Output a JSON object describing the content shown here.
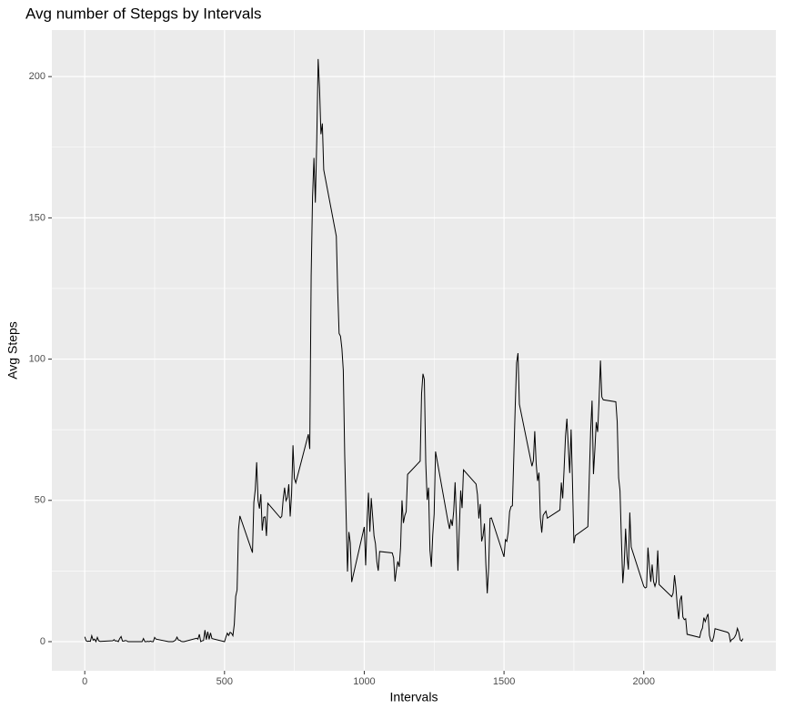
{
  "chart_data": {
    "type": "line",
    "title": "Avg number of Stepgs by Intervals",
    "x_label": "Intervals",
    "y_label": "Avg Steps",
    "color": "#000000",
    "grid": true,
    "xlim": [
      -117.75,
      2472.75
    ],
    "ylim": [
      -10.31,
      216.48
    ],
    "xticks": [
      0,
      500,
      1000,
      1500,
      2000
    ],
    "yticks": [
      0,
      50,
      100,
      150,
      200
    ],
    "minor_xticks": [
      250,
      750,
      1250,
      1750,
      2250
    ],
    "minor_yticks": [
      25,
      75,
      125,
      175
    ],
    "x": [
      0,
      5,
      10,
      15,
      20,
      25,
      30,
      35,
      40,
      45,
      50,
      55,
      100,
      105,
      110,
      115,
      120,
      125,
      130,
      135,
      140,
      145,
      150,
      155,
      200,
      205,
      210,
      215,
      220,
      225,
      230,
      235,
      240,
      245,
      250,
      255,
      300,
      305,
      310,
      315,
      320,
      325,
      330,
      335,
      340,
      345,
      350,
      355,
      400,
      405,
      410,
      415,
      420,
      425,
      430,
      435,
      440,
      445,
      450,
      455,
      500,
      505,
      510,
      515,
      520,
      525,
      530,
      535,
      540,
      545,
      550,
      555,
      600,
      605,
      610,
      615,
      620,
      625,
      630,
      635,
      640,
      645,
      650,
      655,
      700,
      705,
      710,
      715,
      720,
      725,
      730,
      735,
      740,
      745,
      750,
      755,
      800,
      805,
      810,
      815,
      820,
      825,
      830,
      835,
      840,
      845,
      850,
      855,
      900,
      905,
      910,
      915,
      920,
      925,
      930,
      935,
      940,
      945,
      950,
      955,
      1000,
      1005,
      1010,
      1015,
      1020,
      1025,
      1030,
      1035,
      1040,
      1045,
      1050,
      1055,
      1100,
      1105,
      1110,
      1115,
      1120,
      1125,
      1130,
      1135,
      1140,
      1145,
      1150,
      1155,
      1200,
      1205,
      1210,
      1215,
      1220,
      1225,
      1230,
      1235,
      1240,
      1245,
      1250,
      1255,
      1300,
      1305,
      1310,
      1315,
      1320,
      1325,
      1330,
      1335,
      1340,
      1345,
      1350,
      1355,
      1400,
      1405,
      1410,
      1415,
      1420,
      1425,
      1430,
      1435,
      1440,
      1445,
      1450,
      1455,
      1500,
      1505,
      1510,
      1515,
      1520,
      1525,
      1530,
      1535,
      1540,
      1545,
      1550,
      1555,
      1600,
      1605,
      1610,
      1615,
      1620,
      1625,
      1630,
      1635,
      1640,
      1645,
      1650,
      1655,
      1700,
      1705,
      1710,
      1715,
      1720,
      1725,
      1730,
      1735,
      1740,
      1745,
      1750,
      1755,
      1800,
      1805,
      1810,
      1815,
      1820,
      1825,
      1830,
      1835,
      1840,
      1845,
      1850,
      1855,
      1900,
      1905,
      1910,
      1915,
      1920,
      1925,
      1930,
      1935,
      1940,
      1945,
      1950,
      1955,
      2000,
      2005,
      2010,
      2015,
      2020,
      2025,
      2030,
      2035,
      2040,
      2045,
      2050,
      2055,
      2100,
      2105,
      2110,
      2115,
      2120,
      2125,
      2130,
      2135,
      2140,
      2145,
      2150,
      2155,
      2200,
      2205,
      2210,
      2215,
      2220,
      2225,
      2230,
      2235,
      2240,
      2245,
      2250,
      2255,
      2300,
      2305,
      2310,
      2315,
      2320,
      2325,
      2330,
      2335,
      2340,
      2345,
      2350,
      2355
    ],
    "values": [
      1.7,
      0.3,
      0.1,
      0.2,
      0.1,
      2.1,
      0.5,
      0.9,
      0,
      1.5,
      0.3,
      0.1,
      0.3,
      0.7,
      0.2,
      0.3,
      0,
      1.1,
      1.8,
      0.2,
      0.2,
      0.4,
      0.3,
      0,
      0,
      0,
      1.1,
      0,
      0,
      0.1,
      0,
      0.2,
      0,
      0,
      1.5,
      0.9,
      0,
      0,
      0,
      0,
      0.2,
      0.6,
      1.6,
      0.6,
      0.5,
      0.1,
      0,
      0,
      1.2,
      0.9,
      2.6,
      0,
      0.3,
      0.4,
      4.1,
      0.7,
      3.5,
      0.8,
      3.1,
      1.1,
      0,
      1.6,
      3.0,
      2.2,
      3.3,
      3.0,
      2.1,
      6.1,
      16.0,
      18.3,
      39.5,
      44.5,
      31.5,
      49.3,
      53.8,
      63.5,
      50.0,
      47.1,
      52.2,
      39.3,
      44.0,
      44.2,
      37.4,
      49.0,
      43.8,
      44.4,
      50.5,
      54.5,
      49.9,
      51.0,
      55.7,
      44.3,
      52.3,
      69.5,
      57.8,
      56.2,
      73.4,
      68.2,
      129.4,
      157.5,
      171.2,
      155.4,
      177.3,
      206.2,
      195.9,
      179.6,
      183.4,
      167.0,
      143.5,
      124.0,
      109.1,
      108.1,
      103.7,
      96.0,
      66.2,
      45.2,
      24.8,
      38.8,
      35.0,
      21.1,
      40.6,
      27.0,
      42.4,
      52.7,
      38.9,
      50.8,
      44.3,
      37.4,
      34.7,
      28.3,
      25.1,
      31.9,
      31.4,
      29.7,
      21.3,
      25.5,
      28.4,
      26.5,
      33.4,
      50.0,
      42.0,
      44.6,
      46.0,
      59.2,
      63.9,
      87.7,
      94.8,
      92.8,
      63.4,
      50.2,
      54.5,
      32.4,
      26.5,
      37.7,
      45.1,
      67.3,
      42.3,
      39.9,
      43.3,
      41.0,
      46.2,
      56.4,
      42.8,
      25.1,
      40.0,
      53.5,
      47.3,
      60.8,
      55.8,
      52.0,
      43.6,
      48.7,
      35.5,
      37.5,
      41.8,
      27.5,
      17.1,
      26.1,
      43.6,
      43.8,
      30.0,
      36.1,
      35.5,
      38.8,
      46.0,
      47.8,
      48.1,
      65.3,
      82.9,
      98.7,
      102.1,
      84.0,
      62.1,
      64.1,
      74.5,
      63.2,
      56.9,
      59.8,
      43.9,
      38.6,
      44.7,
      45.5,
      46.2,
      43.7,
      46.6,
      56.3,
      50.7,
      61.2,
      72.7,
      78.9,
      68.9,
      59.7,
      75.1,
      56.5,
      34.8,
      37.5,
      40.7,
      58.0,
      74.7,
      85.3,
      59.3,
      67.8,
      77.7,
      74.2,
      85.3,
      99.5,
      86.6,
      85.6,
      84.9,
      77.8,
      58.0,
      53.4,
      36.3,
      20.7,
      27.4,
      40.0,
      30.2,
      25.5,
      45.7,
      33.5,
      19.6,
      19.0,
      19.3,
      33.3,
      26.8,
      21.2,
      27.3,
      21.3,
      19.6,
      21.3,
      32.3,
      20.2,
      15.9,
      17.2,
      23.5,
      19.2,
      12.5,
      8.0,
      14.7,
      16.3,
      8.7,
      7.8,
      8.1,
      2.6,
      1.5,
      3.7,
      4.8,
      8.5,
      7.1,
      8.7,
      9.8,
      2.2,
      0.3,
      0.1,
      1.6,
      4.6,
      3.3,
      2.8,
      0,
      0.8,
      1.0,
      1.6,
      2.6,
      4.7,
      3.3,
      0.6,
      0.2,
      1.1
    ]
  }
}
